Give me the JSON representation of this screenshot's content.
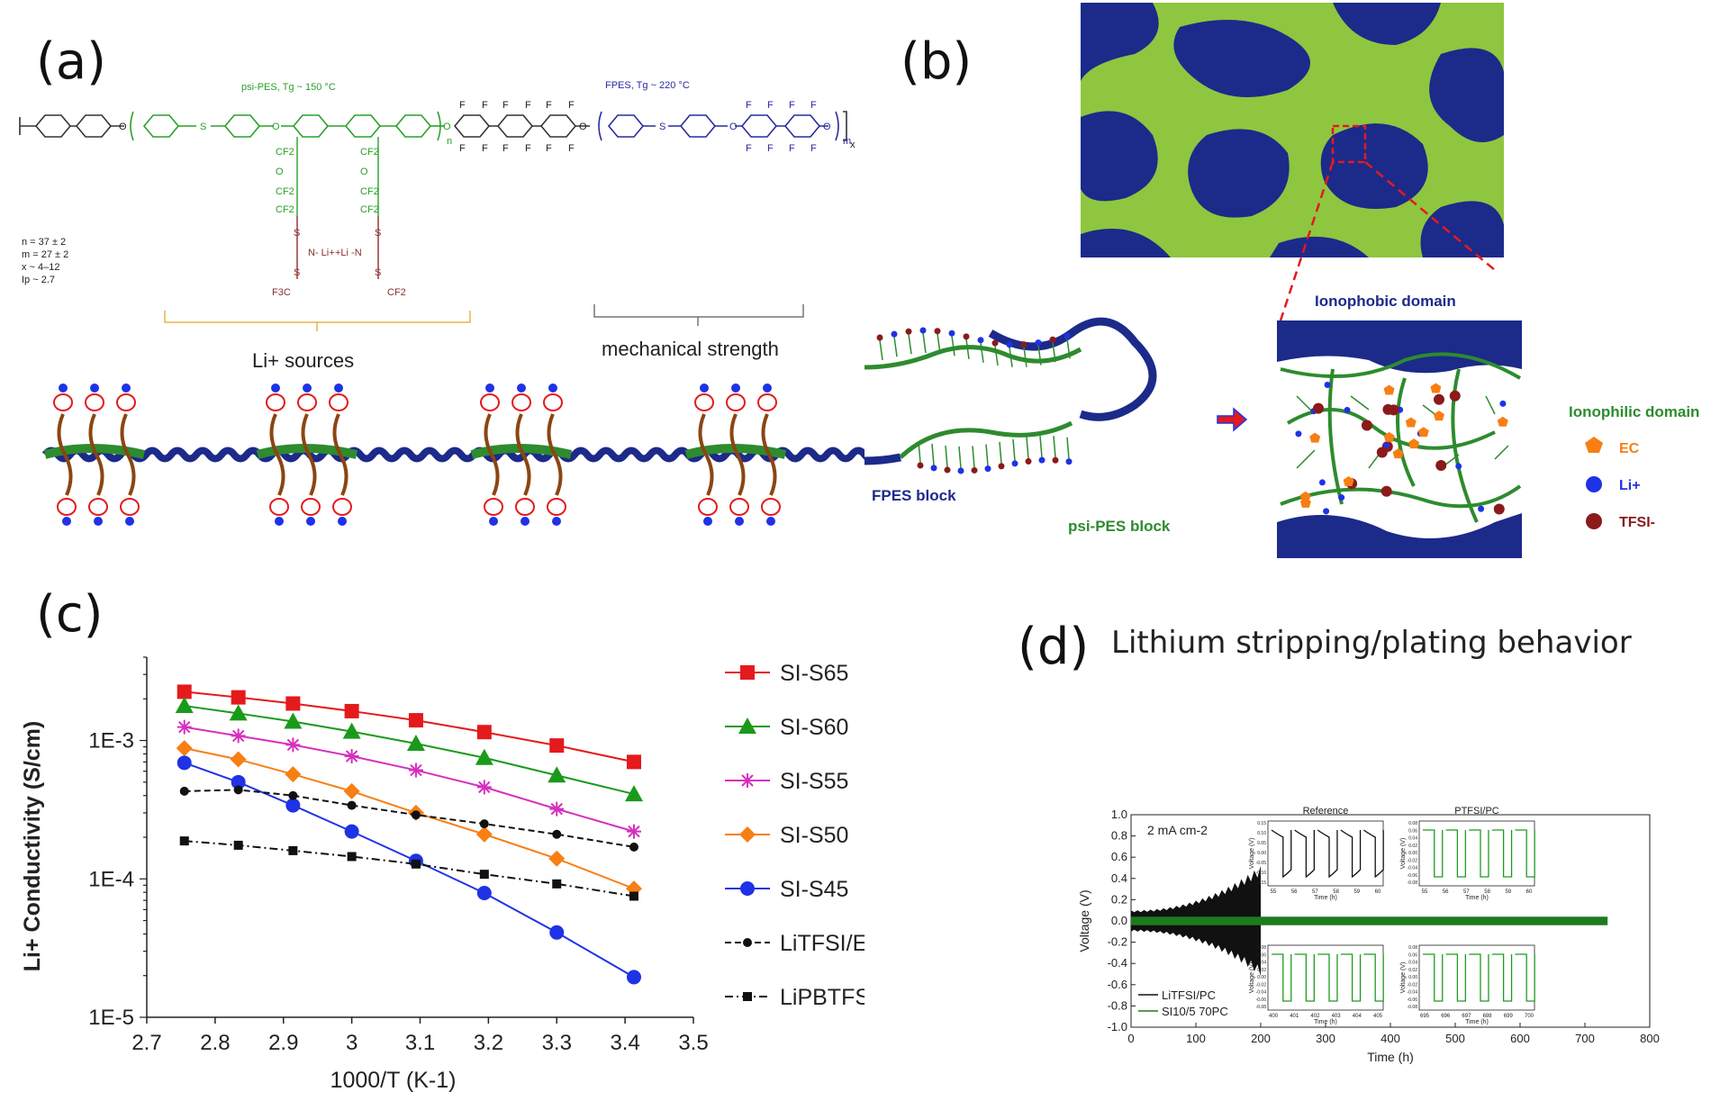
{
  "panels": {
    "a": {
      "label": "(a)",
      "psi_pes_label": "psi-PES, Tg ~ 150 °C",
      "fpes_label": "FPES, Tg ~ 220 °C",
      "params": [
        "n = 37 ± 2",
        "m = 27 ± 2",
        "x ~ 4–12",
        "Ip ~ 2.7"
      ],
      "li_sources": "Li+ sources",
      "mech": "mechanical strength",
      "atom_F": "F",
      "atom_O": "O",
      "atom_S": "S",
      "cf2": "CF2",
      "cf3": "F3C",
      "n_li": "N- Li+",
      "li_n": "+Li -N",
      "sub_n": "n",
      "sub_m": "m",
      "sub_x": "x"
    },
    "b": {
      "label": "(b)",
      "ionophobic": "Ionophobic domain",
      "ionophilic": "Ionophilic domain",
      "fpes_block": "FPES block",
      "psi_block": "psi-PES block",
      "legend": [
        "EC",
        "Li+",
        "TFSI-"
      ]
    },
    "c": {
      "label": "(c)"
    },
    "d": {
      "label": "(d)",
      "title": "Lithium stripping/plating behavior"
    }
  },
  "colors": {
    "red": "#e41a1c",
    "green": "#1a9a1a",
    "magenta": "#d62fbe",
    "orange": "#f77f13",
    "blue": "#1f32e6",
    "black": "#111111",
    "navy": "#1c2a8a",
    "lime": "#8ec63f",
    "chain_green": "#2e8b2e"
  },
  "chart_data": [
    {
      "type": "line",
      "title": "",
      "xlabel": "1000/T (K-1)",
      "ylabel": "Li+ Conductivity (S/cm)",
      "xscale": "linear",
      "yscale": "log",
      "xlim": [
        2.7,
        3.5
      ],
      "ylim": [
        1e-05,
        0.004
      ],
      "xticks": [
        "2.7",
        "2.8",
        "2.9",
        "3",
        "3.1",
        "3.2",
        "3.3",
        "3.4",
        "3.5"
      ],
      "yticks": [
        "1E-5",
        "1E-4",
        "1E-3"
      ],
      "x": [
        2.755,
        2.834,
        2.914,
        3.0,
        3.094,
        3.194,
        3.3,
        3.413
      ],
      "series": [
        {
          "name": "SI-S65",
          "marker": "square",
          "dash": "solid",
          "values": [
            0.00225,
            0.00205,
            0.00185,
            0.00163,
            0.0014,
            0.00115,
            0.00092,
            0.0007
          ]
        },
        {
          "name": "SI-S60",
          "marker": "triangle",
          "dash": "solid",
          "values": [
            0.00178,
            0.00157,
            0.00137,
            0.00116,
            0.00095,
            0.00075,
            0.00056,
            0.00041
          ]
        },
        {
          "name": "SI-S55",
          "marker": "star",
          "dash": "solid",
          "values": [
            0.00125,
            0.00108,
            0.00093,
            0.00077,
            0.00061,
            0.00046,
            0.00032,
            0.00022
          ]
        },
        {
          "name": "SI-S50",
          "marker": "diamond",
          "dash": "solid",
          "values": [
            0.00088,
            0.00073,
            0.00057,
            0.00043,
            0.0003,
            0.00021,
            0.00014,
            8.5e-05
          ]
        },
        {
          "name": "SI-S45",
          "marker": "circle",
          "dash": "solid",
          "values": [
            0.00069,
            0.0005,
            0.00034,
            0.00022,
            0.000135,
            7.9e-05,
            4.1e-05,
            1.95e-05
          ]
        },
        {
          "name": "LiTFSI/EC",
          "marker": "dot",
          "dash": "dash",
          "values": [
            0.00043,
            0.00044,
            0.0004,
            0.00034,
            0.00029,
            0.00025,
            0.00021,
            0.00017
          ]
        },
        {
          "name": "LiPBTFSI/EC",
          "marker": "smallsquare",
          "dash": "dashdot",
          "values": [
            0.000188,
            0.000175,
            0.00016,
            0.000145,
            0.000128,
            0.000108,
            9.2e-05,
            7.5e-05
          ]
        }
      ]
    },
    {
      "type": "line",
      "xlabel": "Time (h)",
      "ylabel": "Voltage (V)",
      "xlim": [
        0,
        800
      ],
      "ylim": [
        -1.0,
        1.0
      ],
      "xticks": [
        "0",
        "100",
        "200",
        "300",
        "400",
        "500",
        "600",
        "700",
        "800"
      ],
      "yticks": [
        "-1.0",
        "-0.8",
        "-0.6",
        "-0.4",
        "-0.2",
        "0.0",
        "0.2",
        "0.4",
        "0.6",
        "0.8",
        "1.0"
      ],
      "annotation": "2 mA cm-2",
      "series": [
        {
          "name": "LiTFSI/PC",
          "time_range": [
            0,
            200
          ],
          "amplitude_start": 0.1,
          "amplitude_end": 0.52
        },
        {
          "name": "SI10/5 70PC",
          "time_range": [
            0,
            735
          ],
          "amplitude": 0.04
        }
      ],
      "insets": [
        {
          "title": "Reference",
          "xlabel": "Time (h)",
          "ylabel": "Voltage (V)",
          "xticks": [
            "55",
            "56",
            "57",
            "58",
            "59",
            "60"
          ],
          "yticks": [
            "0.15",
            "0.10",
            "0.05",
            "0.00",
            "-0.05",
            "-0.10",
            "-0.15"
          ],
          "amplitude": 0.13
        },
        {
          "title": "PTFSI/PC",
          "xlabel": "Time (h)",
          "ylabel": "Voltage (V)",
          "xticks": [
            "55",
            "56",
            "57",
            "58",
            "59",
            "60"
          ],
          "yticks": [
            "0.08",
            "0.06",
            "0.04",
            "0.02",
            "0.00",
            "-0.02",
            "-0.04",
            "-0.06",
            "-0.08"
          ],
          "amplitude": 0.05
        },
        {
          "title": "",
          "xlabel": "Time (h)",
          "ylabel": "Voltage (V)",
          "xticks": [
            "400",
            "401",
            "402",
            "403",
            "404",
            "405"
          ],
          "yticks": [
            "0.08",
            "0.06",
            "0.04",
            "0.02",
            "0.00",
            "-0.02",
            "-0.04",
            "-0.06",
            "-0.08"
          ],
          "amplitude": 0.05
        },
        {
          "title": "",
          "xlabel": "Time (h)",
          "ylabel": "Voltage (V)",
          "xticks": [
            "695",
            "696",
            "697",
            "698",
            "699",
            "700"
          ],
          "yticks": [
            "0.08",
            "0.06",
            "0.04",
            "0.02",
            "0.00",
            "-0.02",
            "-0.04",
            "-0.06",
            "-0.08"
          ],
          "amplitude": 0.05
        }
      ]
    }
  ]
}
